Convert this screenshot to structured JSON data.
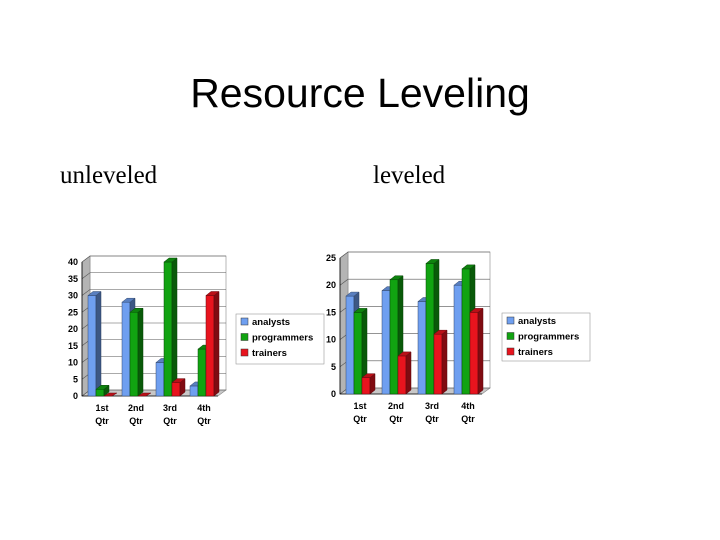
{
  "slide": {
    "title": "Resource Leveling",
    "left_caption": "unleveled",
    "right_caption": "leveled"
  },
  "colors": {
    "analysts": "#6f9ff0",
    "programmers": "#11a311",
    "trainers": "#e8141e"
  },
  "chart_data": [
    {
      "type": "bar",
      "categories": [
        "1st Qtr",
        "2nd Qtr",
        "3rd Qtr",
        "4th Qtr"
      ],
      "series": [
        {
          "name": "analysts",
          "values": [
            30,
            28,
            10,
            3
          ]
        },
        {
          "name": "programmers",
          "values": [
            2,
            25,
            40,
            14
          ]
        },
        {
          "name": "trainers",
          "values": [
            0,
            0,
            4,
            30
          ]
        }
      ],
      "ylim": [
        0,
        40
      ],
      "yticks": [
        0,
        5,
        10,
        15,
        20,
        25,
        30,
        35,
        40
      ],
      "grid": true,
      "legend": "right",
      "title": "",
      "xlabel": "",
      "ylabel": ""
    },
    {
      "type": "bar",
      "categories": [
        "1st Qtr",
        "2nd Qtr",
        "3rd Qtr",
        "4th Qtr"
      ],
      "series": [
        {
          "name": "analysts",
          "values": [
            18,
            19,
            17,
            20
          ]
        },
        {
          "name": "programmers",
          "values": [
            15,
            21,
            24,
            23
          ]
        },
        {
          "name": "trainers",
          "values": [
            3,
            7,
            11,
            15
          ]
        }
      ],
      "ylim": [
        0,
        25
      ],
      "yticks": [
        0,
        5,
        10,
        15,
        20,
        25
      ],
      "grid": true,
      "legend": "right",
      "title": "",
      "xlabel": "",
      "ylabel": ""
    }
  ]
}
